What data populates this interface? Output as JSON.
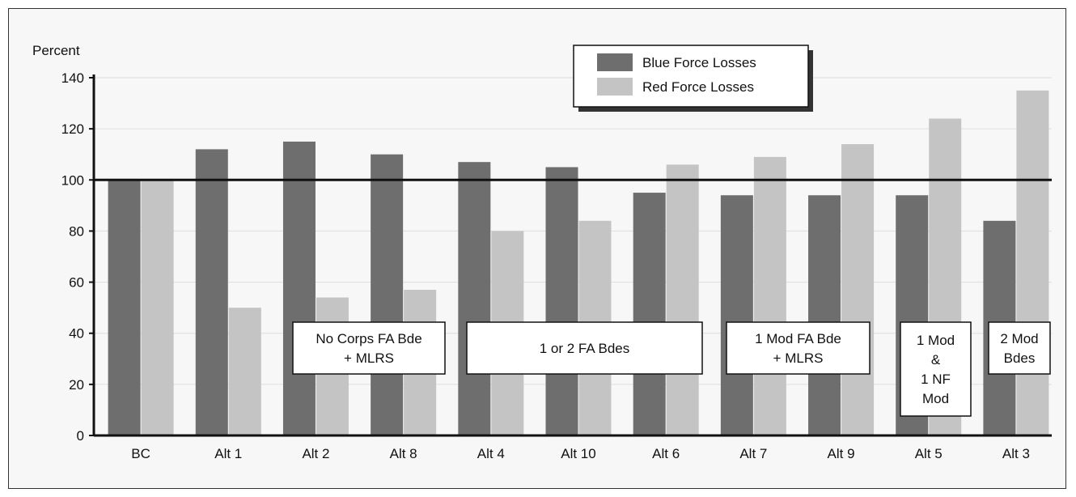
{
  "chart_data": {
    "type": "bar",
    "ylabel": "Percent",
    "ylim": [
      0,
      140
    ],
    "yticks": [
      0,
      20,
      40,
      60,
      80,
      100,
      120,
      140
    ],
    "reference_line": 100,
    "categories": [
      "BC",
      "Alt 1",
      "Alt 2",
      "Alt 8",
      "Alt 4",
      "Alt 10",
      "Alt 6",
      "Alt 7",
      "Alt 9",
      "Alt 5",
      "Alt 3"
    ],
    "series": [
      {
        "name": "Blue Force Losses",
        "color": "#6e6e6e",
        "values": [
          100,
          112,
          115,
          110,
          107,
          105,
          95,
          94,
          94,
          94,
          84
        ]
      },
      {
        "name": "Red Force Losses",
        "color": "#c4c4c4",
        "values": [
          100,
          50,
          54,
          57,
          80,
          84,
          106,
          109,
          114,
          124,
          135
        ]
      }
    ],
    "legend": {
      "position": "top-right"
    },
    "groups": [
      {
        "lines": [
          "No Corps FA Bde",
          "+ MLRS"
        ],
        "categories": [
          "Alt 2",
          "Alt 8"
        ]
      },
      {
        "lines": [
          "1 or 2 FA Bdes"
        ],
        "categories": [
          "Alt 4",
          "Alt 10",
          "Alt 6"
        ]
      },
      {
        "lines": [
          "1 Mod FA Bde",
          "+ MLRS"
        ],
        "categories": [
          "Alt 7",
          "Alt 9"
        ]
      },
      {
        "lines": [
          "1 Mod",
          "&",
          "1 NF",
          "Mod"
        ],
        "categories": [
          "Alt 5"
        ]
      },
      {
        "lines": [
          "2 Mod",
          "Bdes"
        ],
        "categories": [
          "Alt 3"
        ]
      }
    ]
  }
}
